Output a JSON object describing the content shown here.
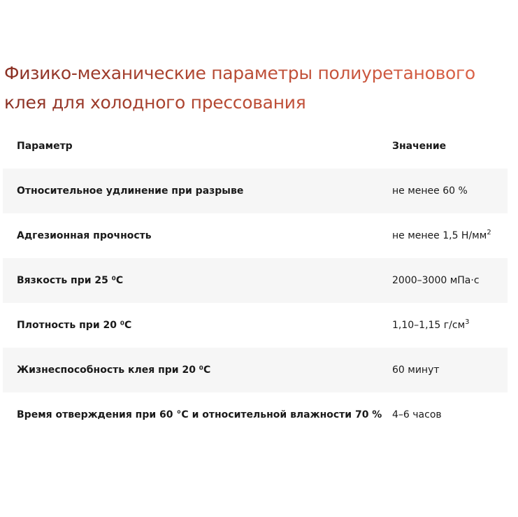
{
  "title": "Физико-механические параметры полиуретанового клея для холодного прессования",
  "table": {
    "header": {
      "param": "Параметр",
      "value": "Значение"
    },
    "rows": [
      {
        "param": "Относительное удлинение при разрыве",
        "value": "не менее 60 %",
        "sup": ""
      },
      {
        "param": "Адгезионная прочность",
        "value": "не менее 1,5 Н/мм",
        "sup": "2"
      },
      {
        "param": "Вязкость при 25 ⁰С",
        "value": "2000–3000 мПа·с",
        "sup": ""
      },
      {
        "param": "Плотность при 20 ⁰С",
        "value": "1,10–1,15 г/см",
        "sup": "3"
      },
      {
        "param": "Жизнеспособность клея при 20 ⁰С",
        "value": "60 минут",
        "sup": ""
      },
      {
        "param": "Время отверждения при 60 °С и относительной влажности 70 %",
        "value": "4–6 часов",
        "sup": ""
      }
    ]
  }
}
